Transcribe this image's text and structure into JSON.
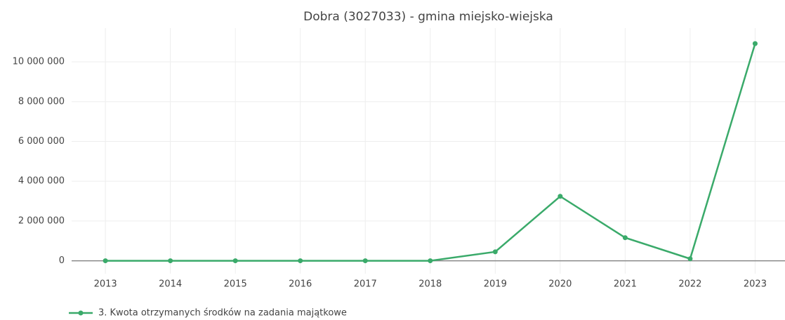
{
  "chart_data": {
    "type": "line",
    "title": "Dobra (3027033) - gmina miejsko-wiejska",
    "x": [
      2013,
      2014,
      2015,
      2016,
      2017,
      2018,
      2019,
      2020,
      2021,
      2022,
      2023
    ],
    "series": [
      {
        "name": "3. Kwota otrzymanych środków na zadania majątkowe",
        "color": "#3aaa6a",
        "values": [
          0,
          0,
          0,
          0,
          0,
          0,
          450000,
          3240000,
          1160000,
          100000,
          10920000
        ]
      }
    ],
    "xlim": [
      2012.48,
      2023.46
    ],
    "xticks": [
      2013,
      2014,
      2015,
      2016,
      2017,
      2018,
      2019,
      2020,
      2021,
      2022,
      2023
    ],
    "ylim": [
      -650000,
      11700000
    ],
    "yticks": [
      0,
      {
        "value": 2000000,
        "label": "2 000 000"
      },
      {
        "value": 4000000,
        "label": "4 000 000"
      },
      {
        "value": 6000000,
        "label": "6 000 000"
      },
      {
        "value": 8000000,
        "label": "8 000 000"
      },
      {
        "value": 10000000,
        "label": "10 000 000"
      }
    ],
    "grid": true
  }
}
